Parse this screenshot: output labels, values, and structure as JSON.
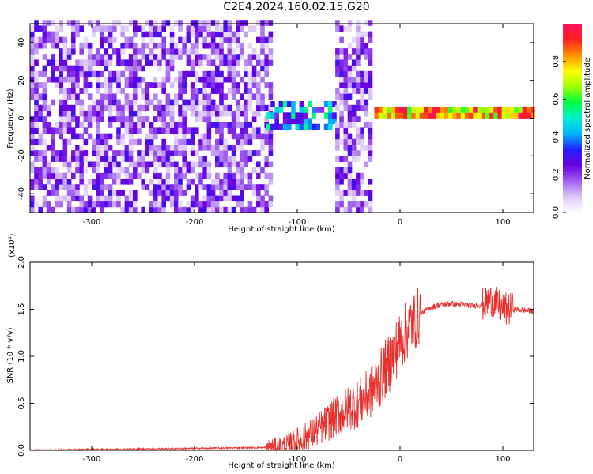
{
  "title": "C2E4.2024.160.02.15.G20",
  "chart_data": [
    {
      "type": "heatmap",
      "xlabel": "Height of straight line (km)",
      "ylabel": "Frequency (Hz)",
      "xlim": [
        -360,
        130
      ],
      "ylim": [
        -50,
        50
      ],
      "xticks": [
        -300,
        -200,
        -100,
        0,
        100
      ],
      "yticks": [
        -40,
        -20,
        0,
        20,
        40
      ],
      "colorbar": {
        "label": "Normalized spectral amplitude",
        "range": [
          0.0,
          1.0
        ],
        "ticks": [
          0.0,
          0.2,
          0.4,
          0.6,
          0.8
        ],
        "colors": [
          "#ffffff",
          "#dcc8f8",
          "#a060f0",
          "#6a00e0",
          "#2020ff",
          "#00b4ff",
          "#00f0d0",
          "#00ff40",
          "#a0ff00",
          "#ffff00",
          "#ff9000",
          "#ff2020",
          "#ff1060"
        ]
      },
      "regions": [
        {
          "x": [
            -360,
            -125
          ],
          "freq": [
            -50,
            50
          ],
          "description": "broadband noise",
          "amplitude": [
            0.05,
            0.3
          ]
        },
        {
          "x": [
            -130,
            -65
          ],
          "freq": [
            -6,
            8
          ],
          "description": "signal band",
          "amplitude": [
            0.2,
            0.55
          ]
        },
        {
          "x": [
            -63,
            -28
          ],
          "freq": [
            -50,
            50
          ],
          "description": "broadband noise",
          "amplitude": [
            0.05,
            0.3
          ]
        },
        {
          "x": [
            -25,
            130
          ],
          "freq": [
            0,
            4
          ],
          "description": "narrow carrier line",
          "amplitude": [
            0.6,
            1.0
          ]
        }
      ]
    },
    {
      "type": "line",
      "xlabel": "Height of straight line (km)",
      "ylabel": "SNR (10 * v/v)",
      "y_multiplier": "(x10⁴)",
      "xlim": [
        -360,
        130
      ],
      "ylim": [
        0.0,
        2.0
      ],
      "xticks": [
        -300,
        -200,
        -100,
        0,
        100
      ],
      "yticks": [
        0.0,
        0.5,
        1.0,
        1.5,
        2.0
      ],
      "series": [
        {
          "color": "#e8302c",
          "x": [
            -360,
            -300,
            -200,
            -130,
            -110,
            -100,
            -90,
            -80,
            -70,
            -60,
            -50,
            -40,
            -30,
            -20,
            -10,
            0,
            10,
            20,
            30,
            40,
            50,
            60,
            70,
            80,
            85,
            90,
            95,
            100,
            110,
            120,
            130
          ],
          "y": [
            0.0,
            0.01,
            0.02,
            0.03,
            0.05,
            0.1,
            0.15,
            0.22,
            0.3,
            0.38,
            0.45,
            0.5,
            0.6,
            0.75,
            0.95,
            1.15,
            1.35,
            1.45,
            1.52,
            1.55,
            1.56,
            1.55,
            1.54,
            1.55,
            1.58,
            1.6,
            1.55,
            1.5,
            1.5,
            1.49,
            1.48
          ]
        }
      ]
    }
  ]
}
